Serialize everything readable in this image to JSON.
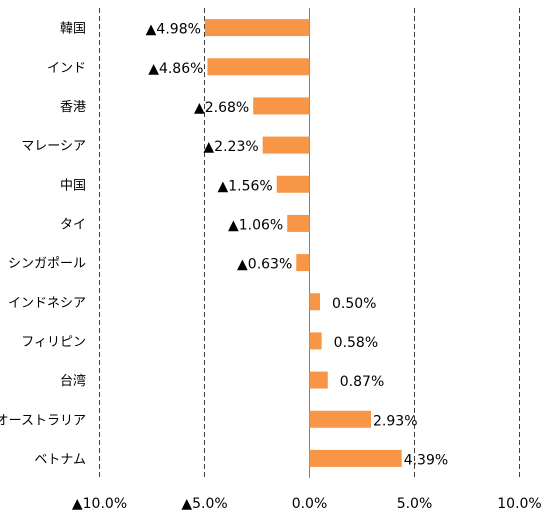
{
  "chart_data": {
    "type": "bar",
    "orientation": "horizontal",
    "categories": [
      "韓国",
      "インド",
      "香港",
      "マレーシア",
      "中国",
      "タイ",
      "シンガポール",
      "インドネシア",
      "フィリピン",
      "台湾",
      "オーストラリア",
      "ベトナム"
    ],
    "values": [
      -4.98,
      -4.86,
      -2.68,
      -2.23,
      -1.56,
      -1.06,
      -0.63,
      0.5,
      0.58,
      0.87,
      2.93,
      4.39
    ],
    "value_labels": [
      "▲4.98%",
      "▲4.86%",
      "▲2.68%",
      "▲2.23%",
      "▲1.56%",
      "▲1.06%",
      "▲0.63%",
      "0.50%",
      "0.58%",
      "0.87%",
      "2.93%",
      "4.39%"
    ],
    "x_ticks": [
      -10,
      -5,
      0,
      5,
      10
    ],
    "x_tick_labels": [
      "▲10.0%",
      "▲5.0%",
      "0.0%",
      "5.0%",
      "10.0%"
    ],
    "xlim": [
      -10,
      10
    ],
    "grid": "vertical dashed",
    "bar_color": "#f79646",
    "title": "",
    "xlabel": "",
    "ylabel": ""
  }
}
